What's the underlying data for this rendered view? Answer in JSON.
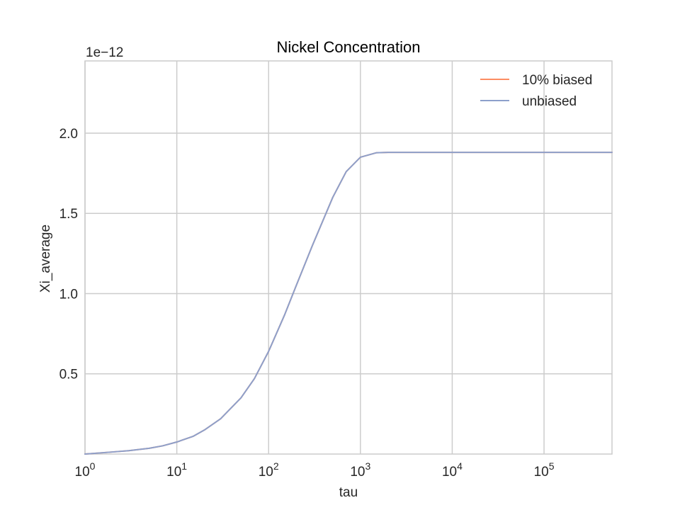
{
  "chart_data": {
    "type": "line",
    "title": "Nickel Concentration",
    "xlabel": "tau",
    "ylabel": "Xi_average",
    "offset_text": "1e−12",
    "x_scale": "log",
    "xlim": [
      1,
      550000
    ],
    "ylim": [
      0,
      2.45
    ],
    "y_multiplier": 1e-12,
    "x_ticks": [
      {
        "value": 1,
        "base": "10",
        "exp": "0"
      },
      {
        "value": 10,
        "base": "10",
        "exp": "1"
      },
      {
        "value": 100,
        "base": "10",
        "exp": "2"
      },
      {
        "value": 1000,
        "base": "10",
        "exp": "3"
      },
      {
        "value": 10000,
        "base": "10",
        "exp": "4"
      },
      {
        "value": 100000,
        "base": "10",
        "exp": "5"
      }
    ],
    "y_ticks": [
      {
        "value": 0.5,
        "label": "0.5"
      },
      {
        "value": 1.0,
        "label": "1.0"
      },
      {
        "value": 1.5,
        "label": "1.5"
      },
      {
        "value": 2.0,
        "label": "2.0"
      }
    ],
    "grid": true,
    "legend_position": "top-right",
    "series": [
      {
        "name": "10% biased",
        "color": "#fc8d62",
        "x": [
          1,
          2,
          3,
          5,
          7,
          10,
          15,
          20,
          30,
          50,
          70,
          100,
          150,
          200,
          300,
          500,
          700,
          1000,
          1500,
          2000,
          3000,
          5000,
          10000,
          100000,
          550000
        ],
        "y": [
          0.0,
          0.013,
          0.021,
          0.036,
          0.051,
          0.075,
          0.11,
          0.15,
          0.22,
          0.35,
          0.47,
          0.64,
          0.87,
          1.05,
          1.3,
          1.6,
          1.76,
          1.85,
          1.878,
          1.88,
          1.88,
          1.88,
          1.88,
          1.88,
          1.88
        ]
      },
      {
        "name": "unbiased",
        "color": "#8da0cb",
        "x": [
          1,
          2,
          3,
          5,
          7,
          10,
          15,
          20,
          30,
          50,
          70,
          100,
          150,
          200,
          300,
          500,
          700,
          1000,
          1500,
          2000,
          3000,
          5000,
          10000,
          100000,
          550000
        ],
        "y": [
          0.0,
          0.013,
          0.021,
          0.036,
          0.051,
          0.075,
          0.11,
          0.15,
          0.22,
          0.35,
          0.47,
          0.64,
          0.87,
          1.05,
          1.3,
          1.6,
          1.76,
          1.85,
          1.878,
          1.88,
          1.88,
          1.88,
          1.88,
          1.88,
          1.88
        ]
      }
    ]
  }
}
